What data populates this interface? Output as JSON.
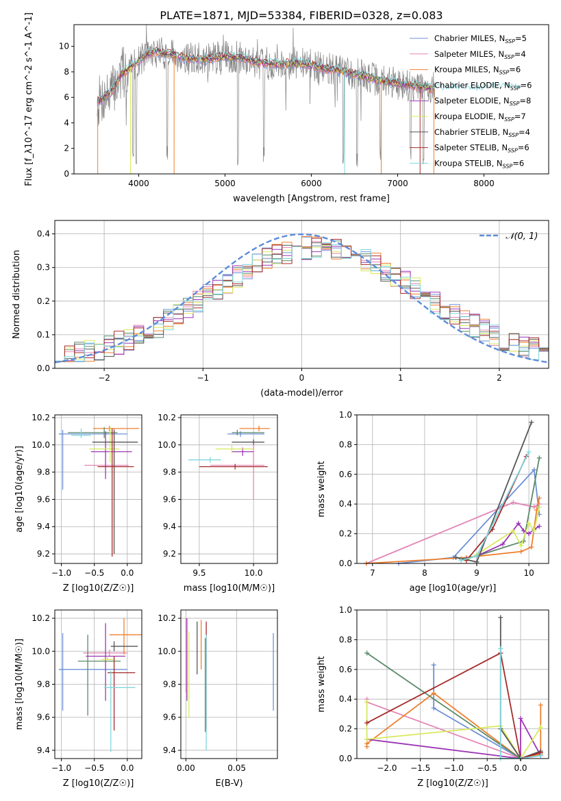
{
  "figure": {
    "title": "PLATE=1871, MJD=53384, FIBERID=0328, z=0.083"
  },
  "colors": {
    "Chabrier MILES": "#6b8fd6",
    "Salpeter MILES": "#e485b5",
    "Kroupa MILES": "#ee7f2d",
    "Chabrier ELODIE": "#5a8a6a",
    "Salpeter ELODIE": "#9b35b5",
    "Kroupa ELODIE": "#d8e95a",
    "Chabrier STELIB": "#555555",
    "Salpeter STELIB": "#a52a2a",
    "Kroupa STELIB": "#7fd6dc",
    "data": "#808080",
    "normal": "#5b8bd9"
  },
  "chart_data": [
    {
      "id": "spectrum",
      "type": "line",
      "title": "PLATE=1871, MJD=53384, FIBERID=0328, z=0.083",
      "xlabel": "wavelength [Angstrom, rest frame]",
      "ylabel": "Flux [f_λ10^-17 erg cm^-2 s^-1 A^-1]",
      "xlim": [
        3250,
        8750
      ],
      "ylim": [
        0,
        11.7
      ],
      "xticks": [
        4000,
        5000,
        6000,
        7000,
        8000
      ],
      "yticks": [
        0,
        2,
        4,
        6,
        8,
        10
      ],
      "grid": false,
      "legend_position": "top-right",
      "legend": [
        "Chabrier MILES, N_SSP=5",
        "Salpeter MILES, N_SSP=4",
        "Kroupa MILES, N_SSP=6",
        "Chabrier ELODIE, N_SSP=6",
        "Salpeter ELODIE, N_SSP=8",
        "Kroupa ELODIE, N_SSP=7",
        "Chabrier STELIB, N_SSP=4",
        "Salpeter STELIB, N_SSP=6",
        "Kroupa STELIB, N_SSP=6"
      ],
      "continuum": {
        "x": [
          3520,
          3600,
          3700,
          3800,
          3900,
          4000,
          4100,
          4200,
          4400,
          4600,
          4800,
          5000,
          5200,
          5400,
          5600,
          5800,
          6000,
          6200,
          6400,
          6600,
          6800,
          7000,
          7200,
          7400,
          7600,
          7800,
          8000,
          8200,
          8400
        ],
        "y": [
          5.6,
          6.0,
          6.6,
          7.8,
          8.3,
          8.9,
          9.4,
          9.6,
          9.3,
          9.0,
          9.0,
          9.2,
          9.1,
          8.7,
          8.6,
          8.7,
          8.5,
          8.2,
          8.0,
          7.7,
          7.3,
          7.1,
          6.9,
          6.7,
          6.6,
          6.6,
          6.6,
          6.8,
          6.7
        ]
      }
    },
    {
      "id": "residuals",
      "type": "histogram",
      "xlabel": "(data-model)/error",
      "ylabel": "Normed distribution",
      "xlim": [
        -2.5,
        2.5
      ],
      "ylim": [
        0,
        0.44
      ],
      "xticks": [
        -2,
        -1,
        0,
        1,
        2
      ],
      "yticks": [
        0.0,
        0.1,
        0.2,
        0.3,
        0.4
      ],
      "grid": true,
      "legend": [
        "𝒩(0, 1)"
      ],
      "legend_position": "top-right",
      "bin_width": 0.1,
      "normal": {
        "mu": 0,
        "sigma": 1
      }
    },
    {
      "id": "age-vs-z",
      "type": "errorbar",
      "xlabel": "Z [log10(Z/Z☉)]",
      "ylabel": "age [log10(age/yr)]",
      "xlim": [
        -1.1,
        0.22
      ],
      "ylim": [
        9.13,
        10.22
      ],
      "xticks": [
        -1.0,
        -0.5,
        0.0
      ],
      "xticklabels": [
        "−1.0",
        "−0.5",
        "0.0"
      ],
      "yticks": [
        9.2,
        9.4,
        9.6,
        9.8,
        10.0,
        10.2
      ],
      "grid": true,
      "points": [
        {
          "series": "Chabrier MILES",
          "x": -0.98,
          "y": 10.08,
          "xerr": [
            0.06,
            0.98
          ],
          "yerr": [
            0.41,
            0.03
          ]
        },
        {
          "series": "Salpeter MILES",
          "x": -0.2,
          "y": 9.85,
          "xerr": [
            0.45,
            0.22
          ],
          "yerr": [
            0.25,
            0.27
          ]
        },
        {
          "series": "Kroupa MILES",
          "x": -0.27,
          "y": 10.12,
          "xerr": [
            0.25,
            0.45
          ],
          "yerr": [
            0.02,
            0.02
          ]
        },
        {
          "series": "Chabrier ELODIE",
          "x": -0.35,
          "y": 10.09,
          "xerr": [
            0.55,
            0.2
          ],
          "yerr": [
            0.04,
            0.04
          ]
        },
        {
          "series": "Salpeter ELODIE",
          "x": -0.33,
          "y": 9.95,
          "xerr": [
            0.22,
            0.4
          ],
          "yerr": [
            0.2,
            0.15
          ]
        },
        {
          "series": "Kroupa ELODIE",
          "x": -0.26,
          "y": 9.97,
          "xerr": [
            0.32,
            0.14
          ],
          "yerr": [
            0.1,
            0.16
          ]
        },
        {
          "series": "Chabrier STELIB",
          "x": -0.2,
          "y": 10.02,
          "xerr": [
            0.33,
            0.36
          ],
          "yerr": [
            0.82,
            0.09
          ]
        },
        {
          "series": "Salpeter STELIB",
          "x": -0.23,
          "y": 9.84,
          "xerr": [
            0.22,
            0.33
          ],
          "yerr": [
            0.66,
            0.28
          ]
        },
        {
          "series": "Kroupa STELIB",
          "x": -0.7,
          "y": 10.07,
          "xerr": [
            0.15,
            0.15
          ],
          "yerr": [
            0.02,
            0.05
          ]
        }
      ]
    },
    {
      "id": "age-vs-mass",
      "type": "errorbar",
      "xlabel": "mass [log10(M/M☉)]",
      "ylabel": "",
      "xlim": [
        9.33,
        10.22
      ],
      "ylim": [
        9.13,
        10.22
      ],
      "xticks": [
        9.5,
        10.0
      ],
      "xticklabels": [
        "9.5",
        "10.0"
      ],
      "yticks": [
        9.2,
        9.4,
        9.6,
        9.8,
        10.0,
        10.2
      ],
      "grid": true,
      "points": [
        {
          "series": "Chabrier MILES",
          "x": 9.88,
          "y": 10.08,
          "xerr": [
            0.12,
            0.22
          ],
          "yerr": [
            0.02,
            0.02
          ]
        },
        {
          "series": "Salpeter MILES",
          "x": 10.0,
          "y": 9.85,
          "xerr": [
            0.4,
            0.1
          ],
          "yerr": [
            0.25,
            0.15
          ]
        },
        {
          "series": "Kroupa MILES",
          "x": 10.05,
          "y": 10.12,
          "xerr": [
            0.18,
            0.1
          ],
          "yerr": [
            0.02,
            0.02
          ]
        },
        {
          "series": "Chabrier ELODIE",
          "x": 9.85,
          "y": 10.09,
          "xerr": [
            0.05,
            0.25
          ],
          "yerr": [
            0.02,
            0.02
          ]
        },
        {
          "series": "Salpeter ELODIE",
          "x": 9.9,
          "y": 9.95,
          "xerr": [
            0.1,
            0.1
          ],
          "yerr": [
            0.03,
            0.03
          ]
        },
        {
          "series": "Kroupa ELODIE",
          "x": 9.8,
          "y": 9.97,
          "xerr": [
            0.15,
            0.2
          ],
          "yerr": [
            0.03,
            0.03
          ]
        },
        {
          "series": "Chabrier STELIB",
          "x": 10.0,
          "y": 10.02,
          "xerr": [
            0.2,
            0.1
          ],
          "yerr": [
            0.02,
            0.02
          ]
        },
        {
          "series": "Salpeter STELIB",
          "x": 9.83,
          "y": 9.84,
          "xerr": [
            0.33,
            0.3
          ],
          "yerr": [
            0.02,
            0.02
          ]
        },
        {
          "series": "Kroupa STELIB",
          "x": 9.6,
          "y": 9.89,
          "xerr": [
            0.2,
            0.1
          ],
          "yerr": [
            0.02,
            0.02
          ]
        }
      ]
    },
    {
      "id": "weight-vs-age",
      "type": "line",
      "xlabel": "age [log10(age/yr)]",
      "ylabel": "mass weight",
      "xlim": [
        6.7,
        10.38
      ],
      "ylim": [
        0,
        1.0
      ],
      "xticks": [
        7,
        8,
        9,
        10
      ],
      "yticks": [
        0.0,
        0.2,
        0.4,
        0.6,
        0.8,
        1.0
      ],
      "grid": true,
      "series": [
        {
          "name": "Chabrier MILES",
          "x": [
            7.5,
            8.55,
            10.1,
            10.2
          ],
          "y": [
            0.0,
            0.04,
            0.63,
            0.33
          ]
        },
        {
          "name": "Salpeter MILES",
          "x": [
            6.88,
            9.7,
            10.1,
            10.2
          ],
          "y": [
            0.0,
            0.41,
            0.38,
            0.4
          ]
        },
        {
          "name": "Kroupa MILES",
          "x": [
            6.88,
            8.8,
            9.85,
            10.05,
            10.15,
            10.2
          ],
          "y": [
            0.0,
            0.04,
            0.08,
            0.11,
            0.36,
            0.44
          ]
        },
        {
          "name": "Chabrier ELODIE",
          "x": [
            8.7,
            9.0,
            9.9,
            10.2
          ],
          "y": [
            0.03,
            0.05,
            0.15,
            0.71
          ]
        },
        {
          "name": "Salpeter ELODIE",
          "x": [
            8.8,
            9.0,
            9.5,
            9.8,
            9.9,
            10.0,
            10.1,
            10.2
          ],
          "y": [
            0.03,
            0.05,
            0.13,
            0.27,
            0.22,
            0.2,
            0.23,
            0.25
          ]
        },
        {
          "name": "Kroupa ELODIE",
          "x": [
            8.8,
            9.0,
            9.7,
            9.85,
            10.0,
            10.1,
            10.2
          ],
          "y": [
            0.02,
            0.06,
            0.22,
            0.12,
            0.27,
            0.22,
            0.38
          ]
        },
        {
          "name": "Chabrier STELIB",
          "x": [
            8.6,
            9.0,
            10.05
          ],
          "y": [
            0.04,
            0.01,
            0.95
          ]
        },
        {
          "name": "Salpeter STELIB",
          "x": [
            8.8,
            9.3,
            9.95
          ],
          "y": [
            0.02,
            0.23,
            0.72
          ]
        },
        {
          "name": "Kroupa STELIB",
          "x": [
            8.7,
            9.0,
            10.0
          ],
          "y": [
            0.02,
            0.05,
            0.75
          ]
        }
      ]
    },
    {
      "id": "mass-vs-z",
      "type": "errorbar",
      "xlabel": "Z [log10(Z/Z☉)]",
      "ylabel": "mass [log10(M/M☉)]",
      "xlim": [
        -1.1,
        0.22
      ],
      "ylim": [
        9.35,
        10.25
      ],
      "xticks": [
        -1.0,
        -0.5,
        0.0
      ],
      "xticklabels": [
        "−1.0",
        "−0.5",
        "0.0"
      ],
      "yticks": [
        9.4,
        9.6,
        9.8,
        10.0,
        10.2
      ],
      "grid": true,
      "points": [
        {
          "series": "Chabrier MILES",
          "x": -0.98,
          "y": 9.89,
          "xerr": [
            0.06,
            0.98
          ],
          "yerr": [
            0.25,
            0.22
          ]
        },
        {
          "series": "Salpeter MILES",
          "x": -0.27,
          "y": 9.99,
          "xerr": [
            0.4,
            0.27
          ],
          "yerr": [
            0.02,
            0.02
          ]
        },
        {
          "series": "Kroupa MILES",
          "x": -0.05,
          "y": 10.1,
          "xerr": [
            0.22,
            0.27
          ],
          "yerr": [
            0.12,
            0.1
          ]
        },
        {
          "series": "Chabrier ELODIE",
          "x": -0.6,
          "y": 9.94,
          "xerr": [
            0.15,
            0.5
          ],
          "yerr": [
            0.33,
            0.16
          ]
        },
        {
          "series": "Salpeter ELODIE",
          "x": -0.33,
          "y": 9.97,
          "xerr": [
            0.3,
            0.3
          ],
          "yerr": [
            0.27,
            0.2
          ]
        },
        {
          "series": "Kroupa ELODIE",
          "x": -0.3,
          "y": 9.95,
          "xerr": [
            0.1,
            0.1
          ],
          "yerr": [
            0.02,
            0.02
          ]
        },
        {
          "series": "Chabrier STELIB",
          "x": -0.2,
          "y": 10.03,
          "xerr": [
            0.05,
            0.36
          ],
          "yerr": [
            0.03,
            0.03
          ]
        },
        {
          "series": "Salpeter STELIB",
          "x": -0.2,
          "y": 9.87,
          "xerr": [
            0.1,
            0.32
          ],
          "yerr": [
            0.35,
            0.1
          ]
        },
        {
          "series": "Kroupa STELIB",
          "x": -0.25,
          "y": 9.78,
          "xerr": [
            0.1,
            0.37
          ],
          "yerr": [
            0.39,
            0.1
          ]
        }
      ]
    },
    {
      "id": "mass-vs-ebv",
      "type": "errorbar",
      "xlabel": "E(B-V)",
      "ylabel": "",
      "xlim": [
        -0.005,
        0.09
      ],
      "ylim": [
        9.35,
        10.25
      ],
      "xticks": [
        0.0,
        0.05
      ],
      "xticklabels": [
        "0.00",
        "0.05"
      ],
      "yticks": [
        9.4,
        9.6,
        9.8,
        10.0,
        10.2
      ],
      "grid": true,
      "points": [
        {
          "series": "Chabrier MILES",
          "x": 0.086,
          "y": 9.89,
          "xerr": [
            0,
            0
          ],
          "yerr": [
            0.25,
            0.22
          ]
        },
        {
          "series": "Salpeter MILES",
          "x": 0.0,
          "y": 9.95,
          "xerr": [
            0,
            0
          ],
          "yerr": [
            0.2,
            0.25
          ]
        },
        {
          "series": "Kroupa MILES",
          "x": 0.015,
          "y": 10.05,
          "xerr": [
            0,
            0
          ],
          "yerr": [
            0.16,
            0.14
          ]
        },
        {
          "series": "Chabrier ELODIE",
          "x": 0.019,
          "y": 9.8,
          "xerr": [
            0,
            0
          ],
          "yerr": [
            0.29,
            0.28
          ]
        },
        {
          "series": "Salpeter ELODIE",
          "x": 0.001,
          "y": 9.95,
          "xerr": [
            0,
            0
          ],
          "yerr": [
            0.25,
            0.25
          ]
        },
        {
          "series": "Kroupa ELODIE",
          "x": 0.003,
          "y": 9.85,
          "xerr": [
            0,
            0
          ],
          "yerr": [
            0.25,
            0.27
          ]
        },
        {
          "series": "Chabrier STELIB",
          "x": 0.011,
          "y": 10.02,
          "xerr": [
            0,
            0
          ],
          "yerr": [
            0.16,
            0.16
          ]
        },
        {
          "series": "Salpeter STELIB",
          "x": 0.02,
          "y": 9.85,
          "xerr": [
            0,
            0
          ],
          "yerr": [
            0.32,
            0.33
          ]
        },
        {
          "series": "Kroupa STELIB",
          "x": 0.02,
          "y": 9.7,
          "xerr": [
            0,
            0
          ],
          "yerr": [
            0.3,
            0.4
          ]
        }
      ]
    },
    {
      "id": "weight-vs-z",
      "type": "line",
      "xlabel": "Z [log10(Z/Z☉)]",
      "ylabel": "mass weight",
      "xlim": [
        -2.45,
        0.42
      ],
      "ylim": [
        0,
        1.0
      ],
      "xticks": [
        -2.0,
        -1.5,
        -1.0,
        -0.5,
        0.0
      ],
      "xticklabels": [
        "−2.0",
        "−1.5",
        "−1.0",
        "−0.5",
        "0.0"
      ],
      "yticks": [
        0.0,
        0.2,
        0.4,
        0.6,
        0.8,
        1.0
      ],
      "grid": true,
      "series": [
        {
          "name": "Chabrier MILES",
          "x": [
            -1.3,
            -1.3,
            0.0,
            0.3
          ],
          "y": [
            0.63,
            0.34,
            0.0,
            0.03
          ]
        },
        {
          "name": "Salpeter MILES",
          "x": [
            -2.3,
            -2.3,
            0.0,
            0.3
          ],
          "y": [
            0.4,
            0.38,
            0.0,
            0.02
          ]
        },
        {
          "name": "Kroupa MILES",
          "x": [
            -2.3,
            -2.3,
            -1.3,
            0.0,
            0.3,
            0.3
          ],
          "y": [
            0.08,
            0.1,
            0.44,
            0.0,
            0.03,
            0.36
          ]
        },
        {
          "name": "Chabrier ELODIE",
          "x": [
            -2.3,
            0.0,
            0.3
          ],
          "y": [
            0.71,
            0.0,
            0.04
          ]
        },
        {
          "name": "Salpeter ELODIE",
          "x": [
            -2.3,
            0.0,
            0.0,
            0.3
          ],
          "y": [
            0.13,
            0.0,
            0.27,
            0.02
          ]
        },
        {
          "name": "Kroupa ELODIE",
          "x": [
            -2.3,
            -2.3,
            -0.3,
            0.0,
            0.3
          ],
          "y": [
            0.38,
            0.13,
            0.22,
            0.0,
            0.21
          ]
        },
        {
          "name": "Chabrier STELIB",
          "x": [
            -0.3,
            -0.3,
            0.0,
            0.3
          ],
          "y": [
            0.95,
            0.2,
            0.0,
            0.05
          ]
        },
        {
          "name": "Salpeter STELIB",
          "x": [
            -2.3,
            -0.3,
            0.0,
            0.3
          ],
          "y": [
            0.24,
            0.71,
            0.0,
            0.04
          ]
        },
        {
          "name": "Kroupa STELIB",
          "x": [
            -0.3,
            -0.3,
            0.0,
            0.3
          ],
          "y": [
            0.74,
            0.0,
            0.0,
            0.02
          ]
        }
      ]
    }
  ]
}
